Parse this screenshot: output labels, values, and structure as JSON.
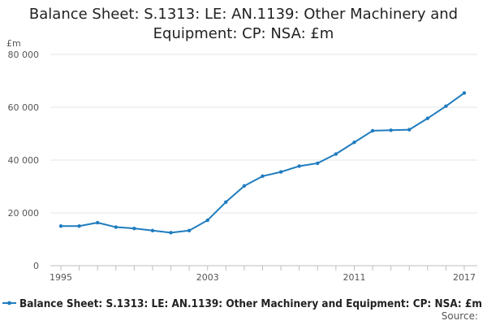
{
  "chart_data": {
    "type": "line",
    "title_line1": "Balance Sheet: S.1313: LE: AN.1139: Other Machinery and",
    "title_line2": "Equipment: CP: NSA: £m",
    "unit_label": "£m",
    "x": [
      1995,
      1996,
      1997,
      1998,
      1999,
      2000,
      2001,
      2002,
      2003,
      2004,
      2005,
      2006,
      2007,
      2008,
      2009,
      2010,
      2011,
      2012,
      2013,
      2014,
      2015,
      2016,
      2017
    ],
    "x_ticks": [
      "1995",
      "2003",
      "2011",
      "2017"
    ],
    "y_ticks": [
      "0",
      "20 000",
      "40 000",
      "60 000",
      "80 000"
    ],
    "ylim": [
      0,
      80000
    ],
    "series": [
      {
        "name": "Balance Sheet: S.1313: LE: AN.1139: Other Machinery and Equipment: CP: NSA: £m",
        "color": "#1f7cbf",
        "values": [
          15000,
          15000,
          16300,
          14600,
          14100,
          13300,
          12500,
          13300,
          17200,
          24100,
          30200,
          33900,
          35500,
          37700,
          38800,
          42300,
          46700,
          51100,
          51300,
          51500,
          55800,
          60400,
          65400
        ]
      }
    ],
    "legend_position": "bottom",
    "grid": true,
    "source_label": "Source:"
  }
}
